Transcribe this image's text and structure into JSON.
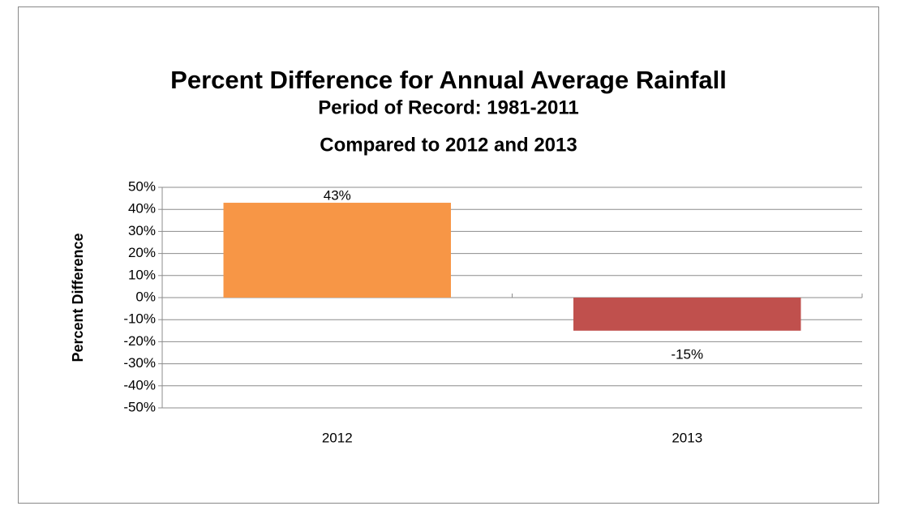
{
  "chart_data": {
    "type": "bar",
    "title": "Percent Difference for Annual Average Rainfall",
    "subtitle": [
      "Period of Record: 1981-2011",
      "Compared to 2012 and 2013"
    ],
    "y_label": "Percent Difference",
    "categories": [
      "2012",
      "2013"
    ],
    "values": [
      43,
      -15
    ],
    "value_labels": [
      "43%",
      "-15%"
    ],
    "colors": [
      "#f79646",
      "#c0504d"
    ],
    "ylim": [
      -50,
      50
    ],
    "yticks": [
      {
        "value": 50,
        "label": "50%"
      },
      {
        "value": 40,
        "label": "40%"
      },
      {
        "value": 30,
        "label": "30%"
      },
      {
        "value": 20,
        "label": "20%"
      },
      {
        "value": 10,
        "label": "10%"
      },
      {
        "value": 0,
        "label": "0%"
      },
      {
        "value": -10,
        "label": "-10%"
      },
      {
        "value": -20,
        "label": "-20%"
      },
      {
        "value": -30,
        "label": "-30%"
      },
      {
        "value": -40,
        "label": "-40%"
      },
      {
        "value": -50,
        "label": "-50%"
      }
    ],
    "grid": true
  }
}
